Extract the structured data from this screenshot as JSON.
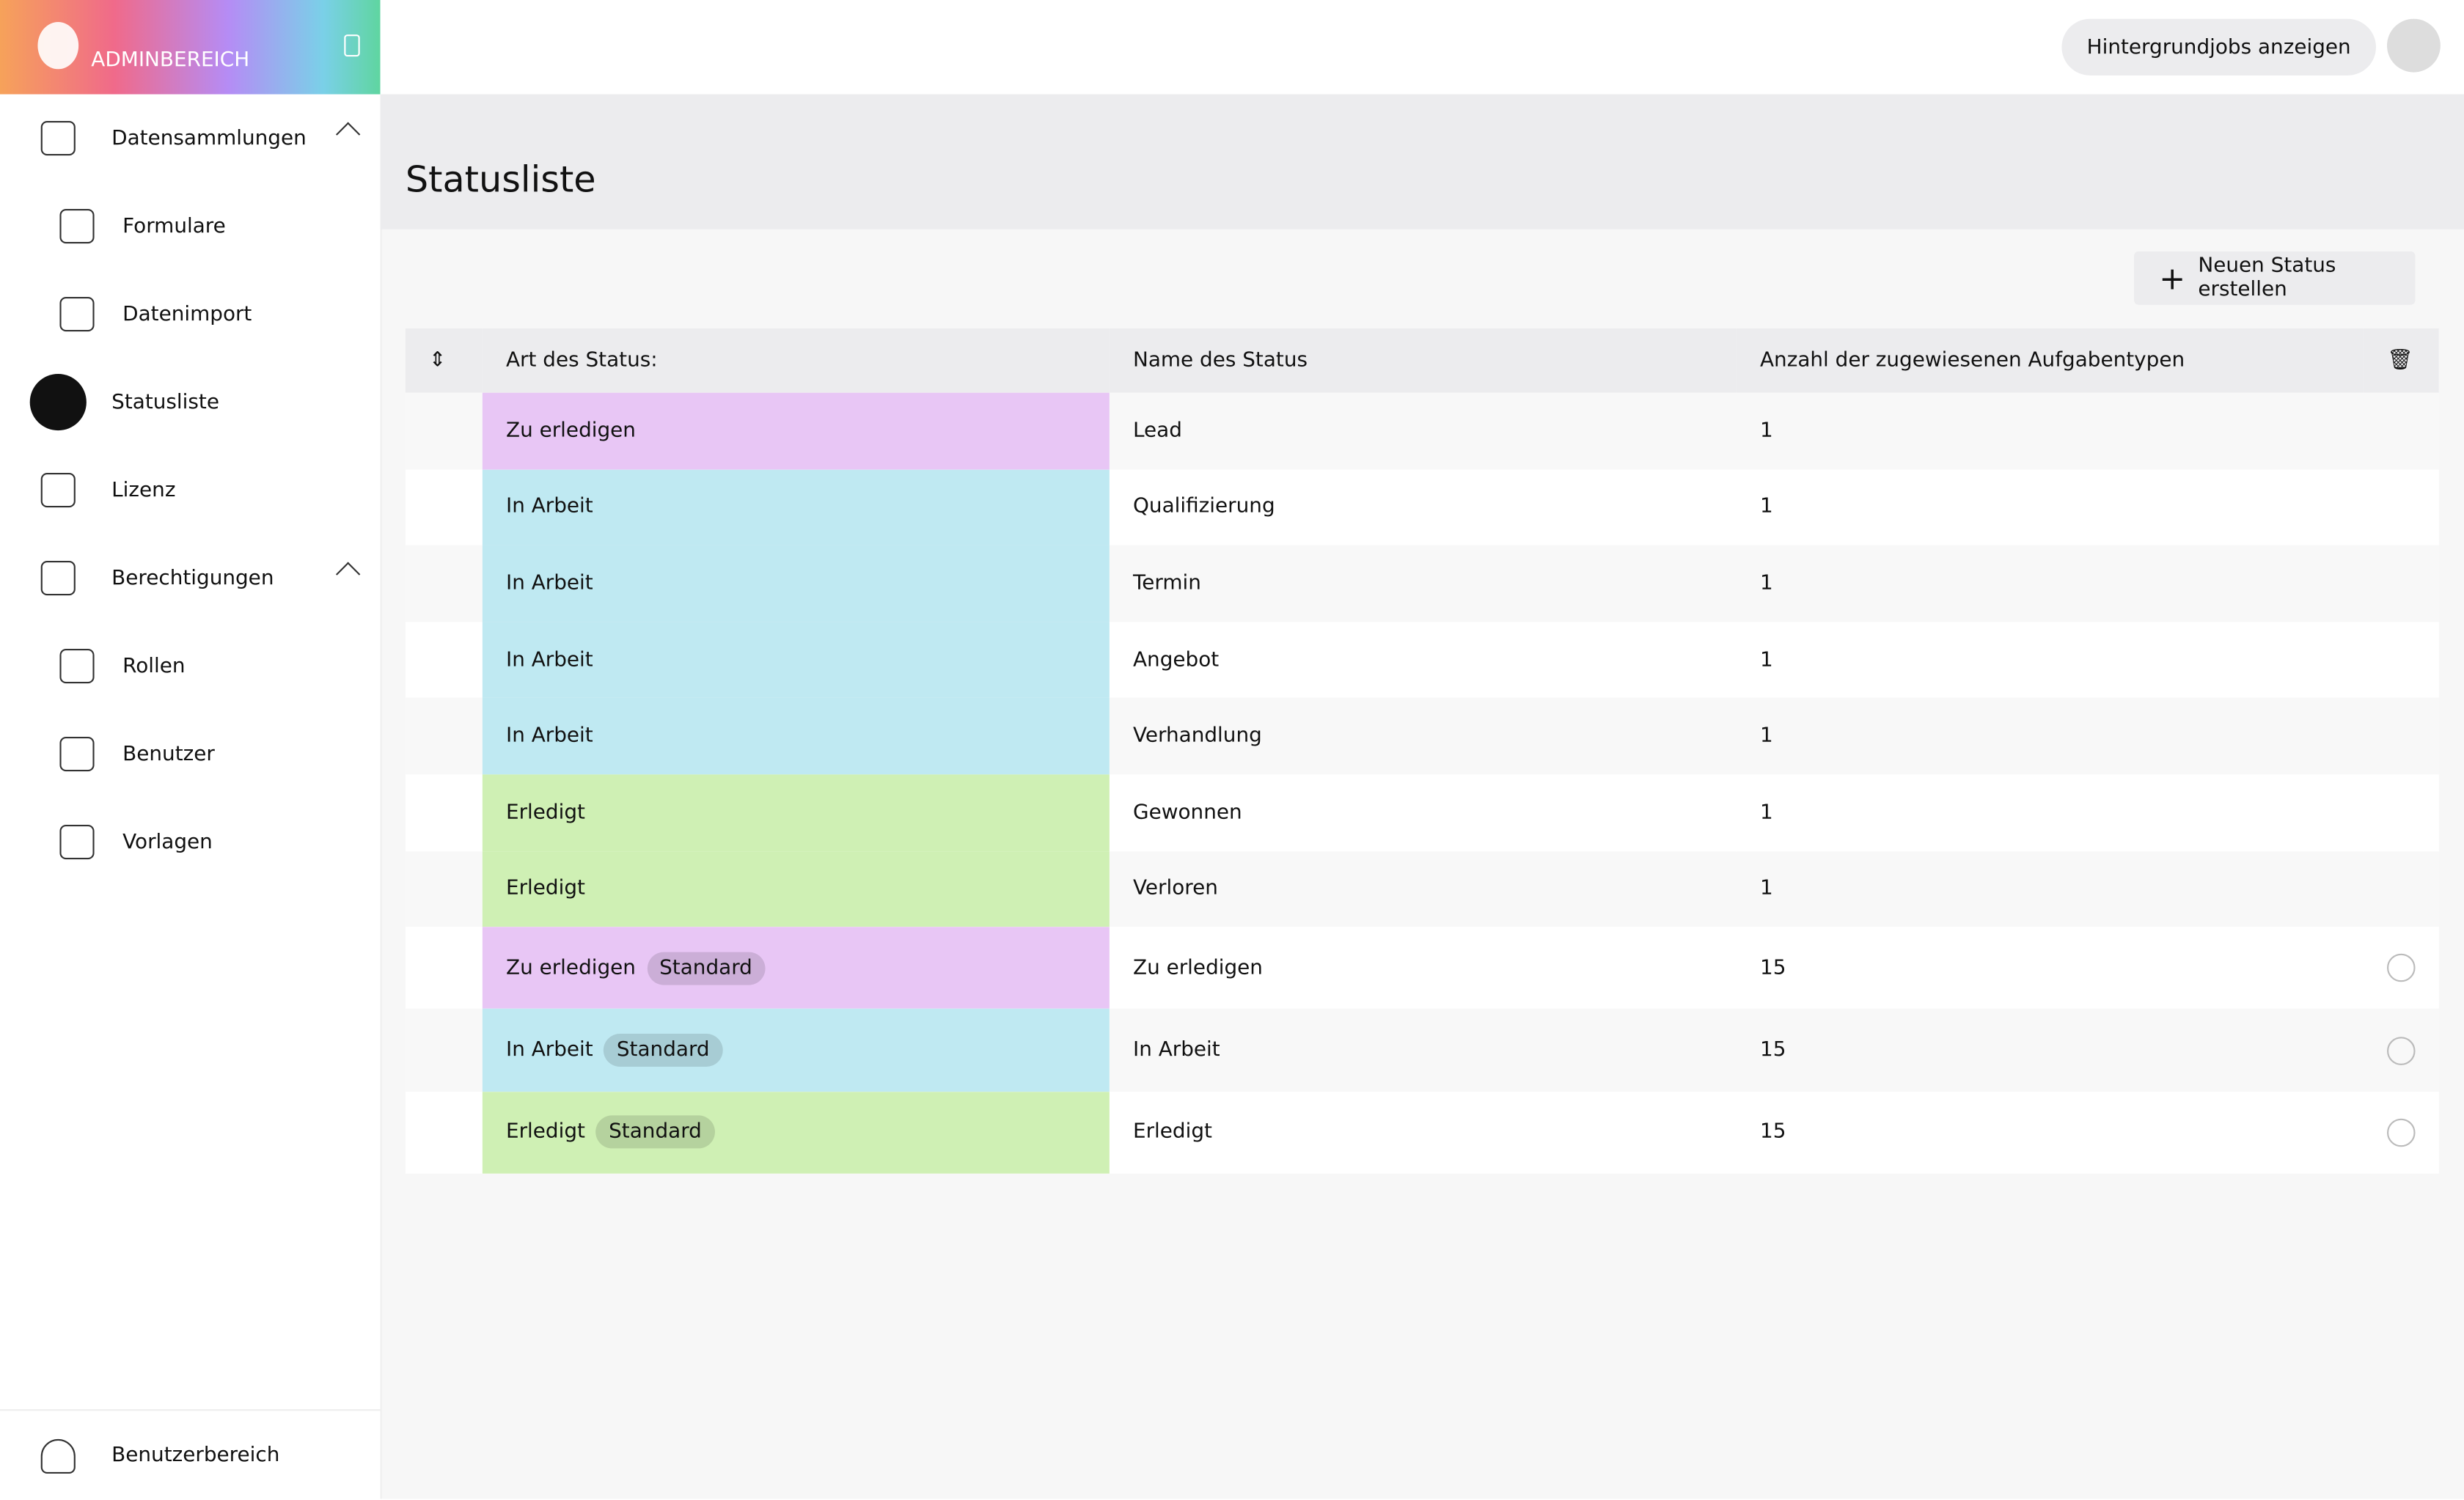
{
  "sidebar": {
    "brand": "ADMINBEREICH",
    "items": [
      {
        "label": "Datensammlungen",
        "level": 0,
        "expandable": true
      },
      {
        "label": "Formulare",
        "level": 1
      },
      {
        "label": "Datenimport",
        "level": 1
      },
      {
        "label": "Statusliste",
        "level": 0,
        "active": true
      },
      {
        "label": "Lizenz",
        "level": 0
      },
      {
        "label": "Berechtigungen",
        "level": 0,
        "expandable": true
      },
      {
        "label": "Rollen",
        "level": 1
      },
      {
        "label": "Benutzer",
        "level": 1
      },
      {
        "label": "Vorlagen",
        "level": 1
      }
    ],
    "footer": "Benutzerbereich"
  },
  "topbar": {
    "button": "Hintergrundjobs anzeigen"
  },
  "header": {
    "title": "Statusliste"
  },
  "toolbar": {
    "button": "Neuen Status erstellen"
  },
  "table": {
    "columns": [
      "Art des Status:",
      "Name des Status",
      "Anzahl der zugewiesenen Aufgabentypen"
    ],
    "rows": [
      {
        "type": "Zu erledigen",
        "color": "#e8c6f5",
        "name": "Lead",
        "count": 1
      },
      {
        "type": "In Arbeit",
        "color": "#bfe9f2",
        "name": "Qualifizierung",
        "count": 1
      },
      {
        "type": "In Arbeit",
        "color": "#bfe9f2",
        "name": "Termin",
        "count": 1
      },
      {
        "type": "In Arbeit",
        "color": "#bfe9f2",
        "name": "Angebot",
        "count": 1
      },
      {
        "type": "In Arbeit",
        "color": "#bfe9f2",
        "name": "Verhandlung",
        "count": 1
      },
      {
        "type": "Erledigt",
        "color": "#cff0b4",
        "name": "Gewonnen",
        "count": 1
      },
      {
        "type": "Erledigt",
        "color": "#cff0b4",
        "name": "Verloren",
        "count": 1
      },
      {
        "type": "Zu erledigen",
        "badge": "Standard",
        "color": "#e8c6f5",
        "name": "Zu erledigen",
        "count": 15
      },
      {
        "type": "In Arbeit",
        "badge": "Standard",
        "color": "#bfe9f2",
        "name": "In Arbeit",
        "count": 15
      },
      {
        "type": "Erledigt",
        "badge": "Standard",
        "color": "#cff0b4",
        "name": "Erledigt",
        "count": 15
      }
    ]
  }
}
